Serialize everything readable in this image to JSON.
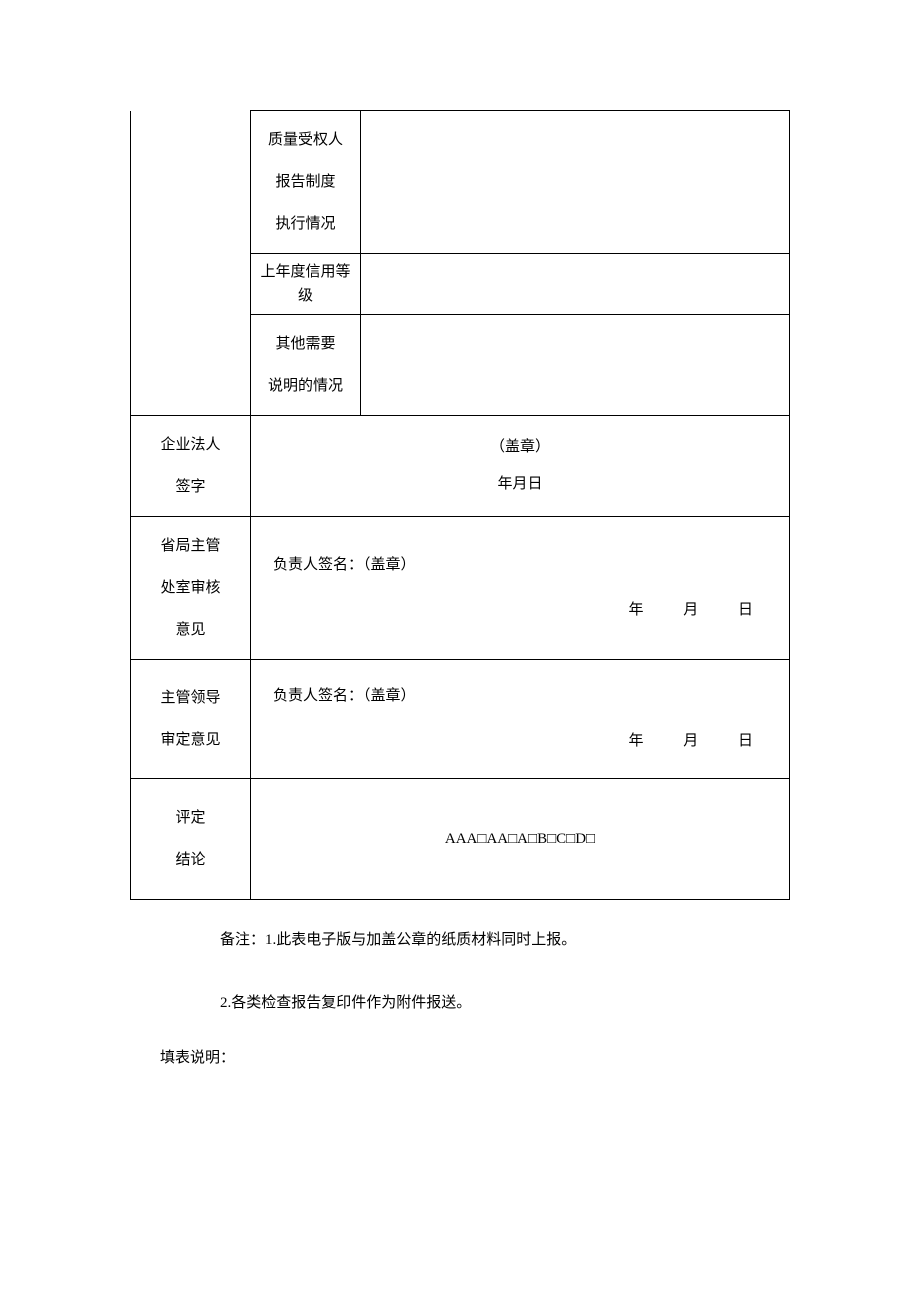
{
  "table": {
    "rows": {
      "quality_auth": {
        "label_line1": "质量受权人",
        "label_line2": "报告制度",
        "label_line3": "执行情况",
        "value": ""
      },
      "credit_grade": {
        "label": "上年度信用等级",
        "value": ""
      },
      "other_notes": {
        "label_line1": "其他需要",
        "label_line2": "说明的情况",
        "value": ""
      },
      "legal_person": {
        "label_line1": "企业法人",
        "label_line2": "签字",
        "stamp": "（盖章）",
        "date": "年月日"
      },
      "provincial_review": {
        "label_line1": "省局主管",
        "label_line2": "处室审核",
        "label_line3": "意见",
        "sig_label": "负责人签名：（盖章）",
        "date_year": "年",
        "date_month": "月",
        "date_day": "日"
      },
      "leader_review": {
        "label_line1": "主管领导",
        "label_line2": "审定意见",
        "sig_label": "负责人签名：（盖章）",
        "date_year": "年",
        "date_month": "月",
        "date_day": "日"
      },
      "rating": {
        "label_line1": "评定",
        "label_line2": "结论",
        "options": "AAA□AA□A□B□C□D□"
      }
    }
  },
  "footer": {
    "note1": "备注：1.此表电子版与加盖公章的纸质材料同时上报。",
    "note2": "2.各类检查报告复印件作为附件报送。",
    "fill_note": "填表说明："
  },
  "style": {
    "font_family": "SimSun",
    "font_size_pt": 11,
    "border_color": "#000000",
    "background": "#ffffff",
    "text_color": "#000000"
  }
}
